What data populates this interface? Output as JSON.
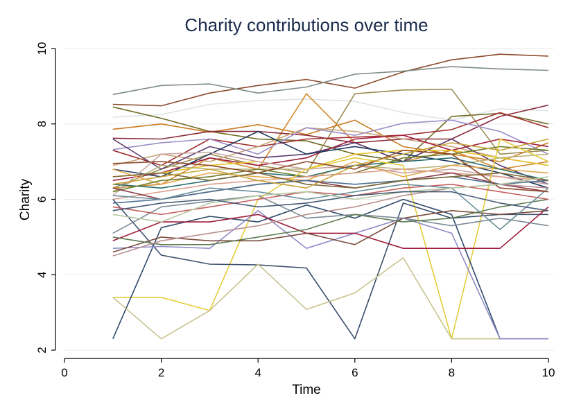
{
  "chart_data": {
    "type": "line",
    "title": "Charity contributions over time",
    "xlabel": "Time",
    "ylabel": "Charity",
    "xlim": [
      0,
      10
    ],
    "ylim": [
      2,
      10
    ],
    "x_ticks": [
      "0",
      "2",
      "4",
      "6",
      "8",
      "10"
    ],
    "y_ticks": [
      "2",
      "4",
      "6",
      "8",
      "10"
    ],
    "grid": true,
    "legend": "none",
    "x": [
      1,
      2,
      3,
      4,
      5,
      6,
      7,
      8,
      9,
      10
    ],
    "series": [
      {
        "color": "#8b4a2b",
        "values": [
          8.52,
          8.48,
          8.82,
          9.02,
          9.18,
          8.95,
          9.38,
          9.7,
          9.85,
          9.8
        ]
      },
      {
        "color": "#7e8b84",
        "values": [
          8.78,
          9.02,
          9.06,
          8.82,
          8.98,
          9.32,
          9.4,
          9.52,
          9.46,
          9.42
        ]
      },
      {
        "color": "#dde3e6",
        "values": [
          8.18,
          8.25,
          8.52,
          8.62,
          8.66,
          8.6,
          8.3,
          8.1,
          8.4,
          8.35
        ]
      },
      {
        "color": "#6f6a22",
        "values": [
          8.45,
          8.15,
          7.8,
          7.6,
          7.55,
          7.2,
          7.0,
          8.2,
          8.28,
          8.0
        ]
      },
      {
        "color": "#9c8b52",
        "values": [
          6.3,
          6.8,
          7.2,
          6.9,
          6.7,
          8.8,
          8.9,
          8.92,
          7.2,
          7.3
        ]
      },
      {
        "color": "#c97b22",
        "values": [
          7.86,
          8.0,
          7.78,
          7.98,
          7.72,
          8.1,
          7.4,
          7.2,
          7.0,
          7.5
        ]
      },
      {
        "color": "#d08a2e",
        "values": [
          6.3,
          6.4,
          7.1,
          6.8,
          8.8,
          7.5,
          7.0,
          7.3,
          6.8,
          7.0
        ]
      },
      {
        "color": "#8a2b3c",
        "values": [
          7.62,
          7.6,
          7.8,
          7.8,
          7.7,
          7.5,
          7.6,
          7.6,
          8.2,
          8.5
        ]
      },
      {
        "color": "#a12e30",
        "values": [
          7.3,
          6.9,
          7.6,
          7.4,
          7.6,
          7.65,
          7.7,
          7.85,
          8.3,
          7.9
        ]
      },
      {
        "color": "#c9a57a",
        "values": [
          6.9,
          7.2,
          7.0,
          7.4,
          7.9,
          7.8,
          7.6,
          7.4,
          7.1,
          6.9
        ]
      },
      {
        "color": "#9c8ec8",
        "values": [
          7.32,
          7.5,
          7.6,
          7.2,
          7.9,
          7.7,
          8.02,
          8.1,
          7.8,
          7.2
        ]
      },
      {
        "color": "#5b3a6e",
        "values": [
          7.6,
          6.8,
          7.4,
          7.1,
          7.2,
          7.5,
          7.0,
          7.6,
          6.9,
          6.4
        ]
      },
      {
        "color": "#a01c3c",
        "values": [
          6.5,
          6.7,
          7.1,
          6.9,
          7.1,
          7.6,
          7.7,
          7.3,
          7.6,
          7.4
        ]
      },
      {
        "color": "#1f3a5f",
        "values": [
          6.8,
          6.6,
          7.2,
          7.8,
          7.2,
          7.4,
          7.2,
          7.0,
          6.7,
          6.3
        ]
      },
      {
        "color": "#e6c42a",
        "values": [
          6.6,
          6.7,
          6.9,
          7.0,
          6.8,
          7.2,
          7.3,
          7.3,
          7.1,
          6.9
        ]
      },
      {
        "color": "#b9b27a",
        "values": [
          6.2,
          6.9,
          6.8,
          6.8,
          6.8,
          6.9,
          6.8,
          6.9,
          7.1,
          7.2
        ]
      },
      {
        "color": "#c8a5a5",
        "values": [
          6.1,
          7.2,
          7.25,
          7.0,
          6.8,
          6.9,
          6.7,
          6.8,
          6.6,
          6.4
        ]
      },
      {
        "color": "#e3a74c",
        "values": [
          6.8,
          6.4,
          6.7,
          6.6,
          6.5,
          7.0,
          6.6,
          6.9,
          6.8,
          6.7
        ]
      },
      {
        "color": "#2e6f6f",
        "values": [
          6.4,
          6.3,
          6.5,
          6.7,
          6.6,
          6.9,
          7.0,
          7.1,
          6.8,
          6.5
        ]
      },
      {
        "color": "#6f7d2a",
        "values": [
          6.2,
          6.5,
          6.6,
          6.8,
          6.6,
          6.7,
          7.1,
          7.2,
          7.4,
          7.3
        ]
      },
      {
        "color": "#dba08c",
        "values": [
          6.0,
          6.2,
          6.4,
          6.5,
          6.6,
          6.7,
          6.8,
          6.7,
          6.6,
          6.5
        ]
      },
      {
        "color": "#8b3b4b",
        "values": [
          6.3,
          6.0,
          6.2,
          6.4,
          6.5,
          6.3,
          6.5,
          6.7,
          6.4,
          6.2
        ]
      },
      {
        "color": "#e5cc3a",
        "values": [
          3.4,
          3.4,
          3.05,
          6.0,
          6.8,
          7.1,
          6.9,
          2.3,
          7.6,
          7.0
        ]
      },
      {
        "color": "#2f4a6b",
        "values": [
          2.3,
          5.25,
          5.55,
          5.4,
          5.85,
          5.5,
          6.0,
          5.6,
          2.3,
          2.3
        ]
      },
      {
        "color": "#3b4f6b",
        "values": [
          6.0,
          4.52,
          4.28,
          4.26,
          4.18,
          2.3,
          5.9,
          5.5,
          5.6,
          5.6
        ]
      },
      {
        "color": "#c9c38e",
        "values": [
          3.4,
          2.3,
          3.05,
          4.28,
          3.08,
          3.52,
          4.45,
          2.3,
          2.3,
          2.3
        ]
      },
      {
        "color": "#8f8ac6",
        "values": [
          4.7,
          4.75,
          4.7,
          5.7,
          4.7,
          5.1,
          5.5,
          5.1,
          2.3,
          2.3
        ]
      },
      {
        "color": "#a01c3c",
        "values": [
          4.9,
          5.4,
          5.4,
          5.6,
          5.1,
          5.1,
          4.7,
          4.7,
          4.7,
          5.8
        ]
      },
      {
        "color": "#7a4a3a",
        "values": [
          4.6,
          5.0,
          4.9,
          4.9,
          5.1,
          4.8,
          5.5,
          5.7,
          5.6,
          5.7
        ]
      },
      {
        "color": "#7b8a96",
        "values": [
          5.1,
          5.8,
          5.95,
          6.1,
          5.5,
          5.6,
          5.5,
          5.3,
          5.5,
          5.3
        ]
      },
      {
        "color": "#5e7b52",
        "values": [
          5.0,
          4.8,
          4.8,
          5.0,
          5.2,
          5.6,
          5.4,
          5.5,
          5.8,
          6.0
        ]
      },
      {
        "color": "#c55f5f",
        "values": [
          5.8,
          5.6,
          5.8,
          6.0,
          6.2,
          6.1,
          6.3,
          6.4,
          6.2,
          6.0
        ]
      },
      {
        "color": "#b88f8f",
        "values": [
          4.5,
          4.9,
          5.1,
          5.3,
          5.6,
          5.8,
          6.1,
          6.3,
          6.4,
          6.3
        ]
      },
      {
        "color": "#4a6f8f",
        "values": [
          5.9,
          6.0,
          6.2,
          6.4,
          6.5,
          6.4,
          6.5,
          6.6,
          6.4,
          6.5
        ]
      },
      {
        "color": "#7d6a3a",
        "values": [
          6.6,
          6.7,
          6.5,
          6.7,
          6.4,
          6.3,
          6.5,
          6.6,
          6.7,
          6.5
        ]
      },
      {
        "color": "#6a8f9b",
        "values": [
          6.1,
          6.0,
          6.3,
          6.2,
          6.0,
          6.2,
          6.4,
          6.3,
          5.2,
          6.3
        ]
      },
      {
        "color": "#8e4a2a",
        "values": [
          6.95,
          7.0,
          6.9,
          6.7,
          7.0,
          6.8,
          7.3,
          7.2,
          6.3,
          6.2
        ]
      },
      {
        "color": "#b7c7a2",
        "values": [
          5.6,
          5.4,
          5.9,
          6.1,
          6.2,
          6.0,
          6.2,
          6.3,
          6.4,
          6.6
        ]
      },
      {
        "color": "#465a76",
        "values": [
          5.7,
          5.9,
          6.0,
          5.8,
          5.9,
          6.1,
          6.2,
          6.2,
          5.9,
          5.7
        ]
      },
      {
        "color": "#c9a23a",
        "values": [
          6.4,
          6.6,
          6.8,
          6.5,
          6.3,
          6.9,
          7.2,
          7.5,
          7.3,
          7.6
        ]
      }
    ]
  }
}
